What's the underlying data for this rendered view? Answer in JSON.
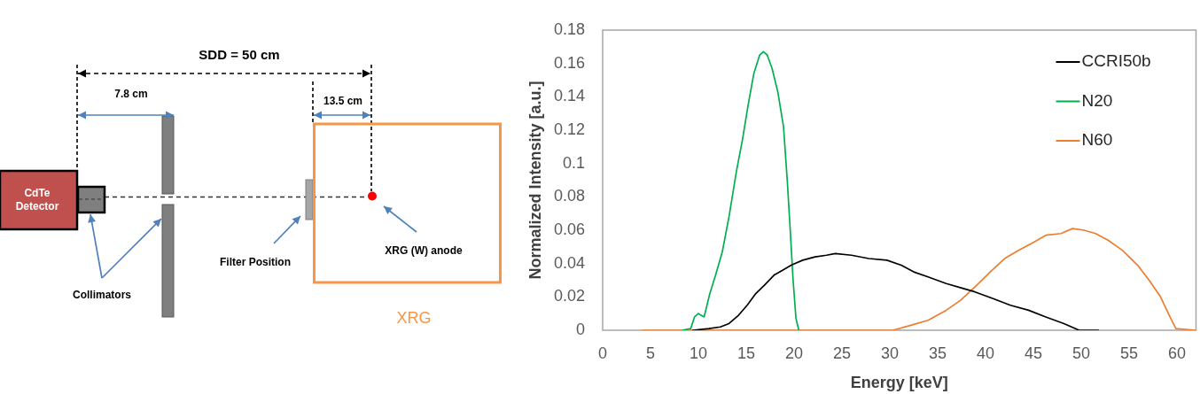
{
  "chart_data": [
    {
      "type": "other",
      "annotations": [
        "SDD = 50 cm",
        "7.8 cm",
        "13.5 cm",
        "CdTe Detector",
        "Filter Position",
        "XRG (W) anode",
        "Collimators",
        "XRG"
      ]
    },
    {
      "type": "line",
      "xlabel": "Energy [keV]",
      "ylabel": "Normalized Intensity [a.u.]",
      "series": [
        {
          "name": "CCRI50b",
          "color": "#000000",
          "x": [
            9.4,
            11.1,
            12.3,
            13.2,
            14.2,
            15.1,
            16.0,
            16.9,
            17.9,
            18.8,
            19.7,
            20.9,
            22.2,
            23.4,
            24.3,
            26.0,
            27.8,
            29.7,
            31.2,
            32.5,
            34.0,
            35.9,
            37.7,
            38.9,
            40.8,
            42.6,
            44.5,
            46.3,
            48.2,
            49.8,
            51.8
          ],
          "values": [
            0,
            0.001,
            0.002,
            0.004,
            0.009,
            0.015,
            0.022,
            0.027,
            0.033,
            0.036,
            0.039,
            0.042,
            0.044,
            0.045,
            0.046,
            0.045,
            0.043,
            0.042,
            0.039,
            0.035,
            0.032,
            0.028,
            0.025,
            0.023,
            0.019,
            0.015,
            0.012,
            0.008,
            0.004,
            0,
            0
          ]
        },
        {
          "name": "N20",
          "color": "#00b050",
          "x": [
            8.3,
            9.2,
            9.6,
            10.0,
            10.6,
            11.2,
            11.8,
            12.5,
            13.2,
            14.0,
            14.6,
            15.2,
            15.8,
            16.4,
            16.8,
            17.2,
            17.7,
            18.3,
            18.9,
            19.3,
            19.6,
            19.9,
            20.2,
            20.5
          ],
          "values": [
            0,
            0.001,
            0.008,
            0.01,
            0.008,
            0.022,
            0.033,
            0.047,
            0.068,
            0.096,
            0.114,
            0.135,
            0.154,
            0.165,
            0.167,
            0.165,
            0.157,
            0.143,
            0.122,
            0.089,
            0.06,
            0.03,
            0.007,
            0
          ]
        },
        {
          "name": "N60",
          "color": "#ed7d31",
          "x": [
            4.1,
            30.3,
            32.2,
            34.0,
            35.9,
            37.4,
            38.9,
            40.5,
            42.0,
            43.5,
            45.1,
            46.3,
            47.9,
            49.1,
            50.3,
            51.5,
            52.8,
            54.3,
            55.9,
            57.1,
            58.3,
            59.2,
            59.9,
            62
          ],
          "values": [
            0,
            0,
            0.003,
            0.006,
            0.012,
            0.018,
            0.026,
            0.035,
            0.043,
            0.048,
            0.053,
            0.057,
            0.058,
            0.061,
            0.06,
            0.058,
            0.054,
            0.048,
            0.039,
            0.03,
            0.02,
            0.009,
            0.001,
            0
          ]
        }
      ],
      "xlim": [
        0,
        62
      ],
      "xticks": [
        0,
        5,
        10,
        15,
        20,
        25,
        30,
        35,
        40,
        45,
        50,
        55,
        60
      ],
      "ylim": [
        0,
        0.18
      ],
      "yticks": [
        0,
        0.02,
        0.04,
        0.06,
        0.08,
        0.1,
        0.12,
        0.14,
        0.16,
        0.18
      ],
      "legend": "top right",
      "grid": false,
      "marker": "none"
    }
  ]
}
